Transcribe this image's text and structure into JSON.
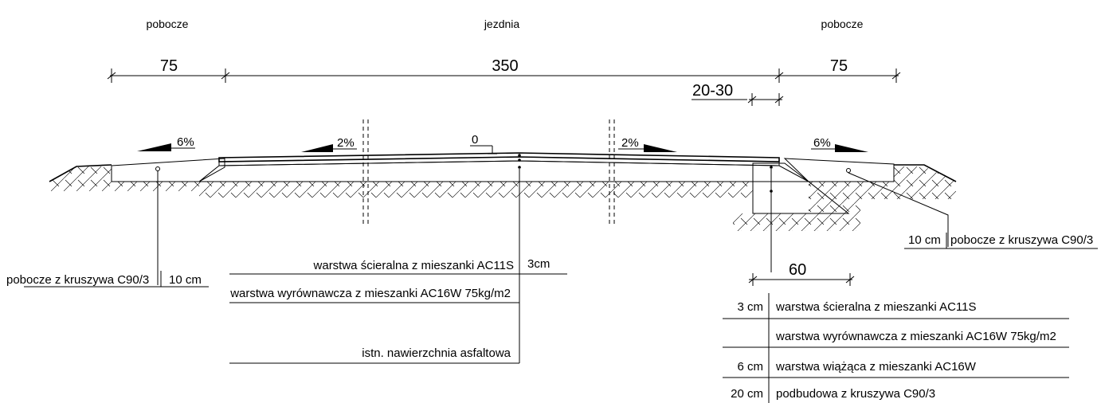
{
  "zones": {
    "left": "pobocze",
    "center": "jezdnia",
    "right": "pobocze"
  },
  "dimensions": {
    "left_width": "75",
    "center_width": "350",
    "right_width": "75",
    "overlap": "20-30",
    "widening": "60"
  },
  "slopes": {
    "left_shoulder": "6%",
    "left_lane": "2%",
    "crown": "0",
    "right_lane": "2%",
    "right_shoulder": "6%"
  },
  "left_callout": {
    "label": "pobocze z kruszywa C90/3",
    "thickness": "10 cm"
  },
  "center_callout": {
    "layer1": "warstwa ścieralna z mieszanki AC11S",
    "layer1_thickness": "3cm",
    "layer2": "warstwa wyrównawcza z mieszanki AC16W 75kg/m2",
    "layer3": "istn. nawierzchnia asfaltowa"
  },
  "right_callout": {
    "thickness": "10 cm",
    "label": "pobocze z kruszywa C90/3"
  },
  "widening_table": [
    {
      "thickness": "3 cm",
      "label": "warstwa ścieralna z mieszanki AC11S"
    },
    {
      "thickness": "",
      "label": "warstwa wyrównawcza z mieszanki AC16W 75kg/m2"
    },
    {
      "thickness": "6 cm",
      "label": "warstwa wiążąca z mieszanki AC16W"
    },
    {
      "thickness": "20 cm",
      "label": "podbudowa z kruszywa C90/3"
    }
  ],
  "colors": {
    "line": "#000000",
    "background": "#ffffff"
  }
}
